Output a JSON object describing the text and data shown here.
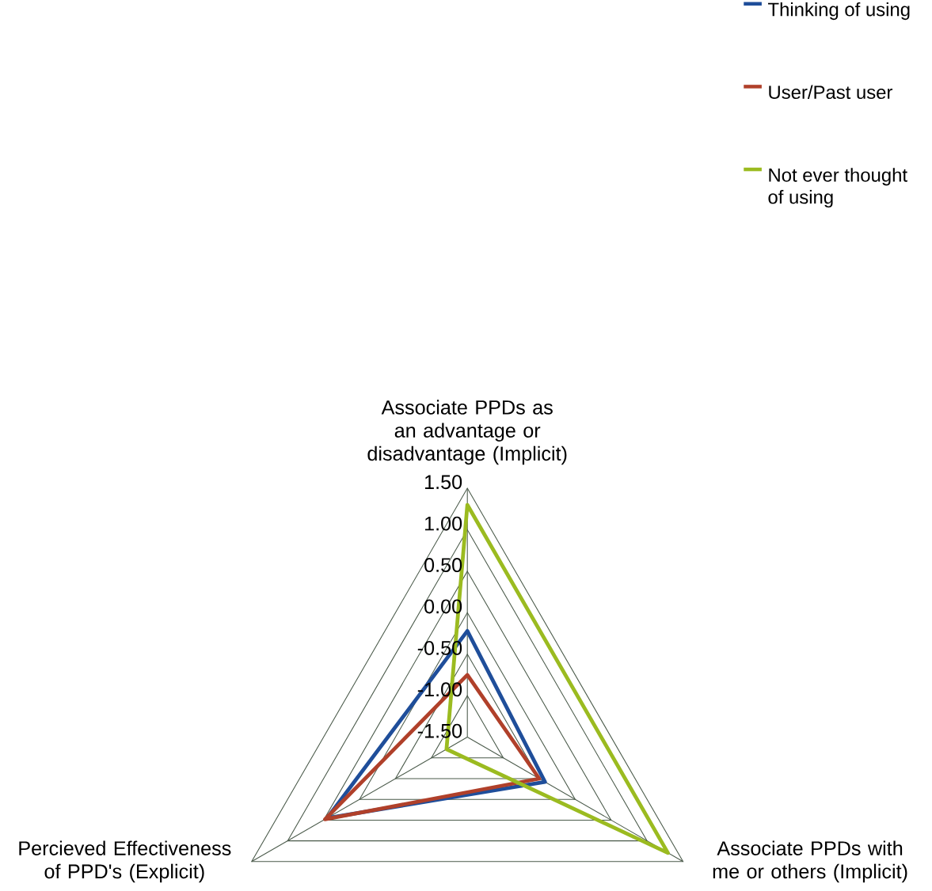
{
  "chart_data": {
    "type": "radar",
    "categories": [
      "Associate PPDs as an advantage or disadvantage (Implicit)",
      "Associate PPDs with me or others (Implicit)",
      "Percieved Effectiveness of PPD's (Explicit)"
    ],
    "series": [
      {
        "name": "Thinking of using",
        "color": "#1f4e9a",
        "values": [
          -0.22,
          -0.42,
          0.45
        ]
      },
      {
        "name": "User/Past user",
        "color": "#b0402a",
        "values": [
          -0.75,
          -0.5,
          0.48
        ]
      },
      {
        "name": "Not ever thought of using",
        "color": "#9bbb20",
        "values": [
          1.3,
          1.29,
          -1.21
        ]
      }
    ],
    "ylim": [
      -1.5,
      1.5
    ],
    "yticks": [
      {
        "value": -1.5,
        "label": "-1.50"
      },
      {
        "value": -1.0,
        "label": "-1.00"
      },
      {
        "value": -0.5,
        "label": "-0.50"
      },
      {
        "value": 0.0,
        "label": "0.00"
      },
      {
        "value": 0.5,
        "label": "0.50"
      },
      {
        "value": 1.0,
        "label": "1.00"
      },
      {
        "value": 1.5,
        "label": "1.50"
      }
    ],
    "legend": "top right"
  }
}
